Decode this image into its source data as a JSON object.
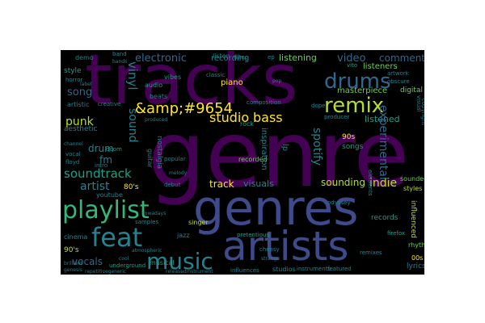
{
  "palette": {
    "purple_dark": "#440154",
    "purple": "#482677",
    "indigo": "#3e4a89",
    "blue": "#31688e",
    "teal": "#26828e",
    "green": "#1f9e89",
    "lime": "#35b779",
    "light_green": "#6ece58",
    "yellow_green": "#b5de2b",
    "yellow": "#fde725"
  },
  "words": {
    "genre": "genre",
    "tracks": "tracks",
    "genres": "genres",
    "artists": "artists",
    "playlist": "playlist",
    "drums": "drums",
    "feat": "feat",
    "music": "music",
    "remix": "remix",
    "electronic": "electronic",
    "entity": "&amp;#9654",
    "studio": "studio",
    "bass": "bass",
    "soundtrack": "soundtrack",
    "spotify": "spotify",
    "indie": "indie",
    "video": "video",
    "comment": "comment",
    "vinyl": "vinyl",
    "recording": "recording",
    "listening": "listening",
    "punk": "punk",
    "song": "song",
    "sound": "sound",
    "artist": "artist",
    "drum": "drum",
    "track": "track",
    "visuals": "visuals",
    "sounding": "sounding",
    "experimental": "experimental",
    "listened": "listened",
    "vocals": "vocals",
    "masterpiece": "masterpiece",
    "listeners": "listeners",
    "piano": "piano",
    "aesthetic": "aesthetic",
    "fm": "fm",
    "eighties": "80's",
    "nineties_a": "90s",
    "nineties_b": "90's",
    "songs": "songs",
    "records": "records",
    "recorded": "recorded",
    "rock": "rock",
    "youtube": "youtube",
    "jazz": "jazz",
    "musical": "musical",
    "singer": "singer",
    "sounded": "sounded",
    "styles": "styles",
    "influenced": "influenced",
    "rhythm": "rhythm",
    "lyrics": "lyrics",
    "oos": "00s",
    "cinema": "cinema",
    "underground": "underground",
    "intro": "intro",
    "digital": "digital",
    "artwork": "artwork",
    "obscure": "obscure",
    "style": "style",
    "demo": "demo",
    "band": "band",
    "vibes": "vibes",
    "audio": "audio",
    "beats": "beats",
    "listen": "listen",
    "creative": "creative",
    "artistic": "artistic",
    "doom": "doom",
    "vocal": "vocal",
    "floyd": "floyd",
    "vito": "vito",
    "producer": "producer",
    "composition": "composition",
    "inspiration": "inspiration",
    "pretentious": "pretentious",
    "cheesy": "cheesy",
    "studios": "studios",
    "instruments": "instruments",
    "remixes": "remixes",
    "firefox": "firefox",
    "odyssey": "odyssey",
    "samples": "samples",
    "debut": "debut",
    "popular": "popular",
    "nostalgia": "nostalgia",
    "guitar": "guitar",
    "classic": "classic",
    "horror": "horror",
    "genesis": "genesis",
    "brilliant": "brilliant",
    "repetitive": "repetitivegeneric",
    "release": "releasedinstrument",
    "influences": "influences",
    "featured": "featured",
    "strange": "strange",
    "copyright": "copyright",
    "nowadays": "nowadays",
    "lp": "lp",
    "cool": "cool",
    "atmospheric": "atmospheric",
    "melody": "melody",
    "ep": "ep",
    "pop": "pop",
    "bands": "bands",
    "label": "label",
    "visual": "visual",
    "produced": "produced",
    "dope": "dope",
    "elements": "elements",
    "channel": "channel",
    "tiltec": "tiltec"
  }
}
